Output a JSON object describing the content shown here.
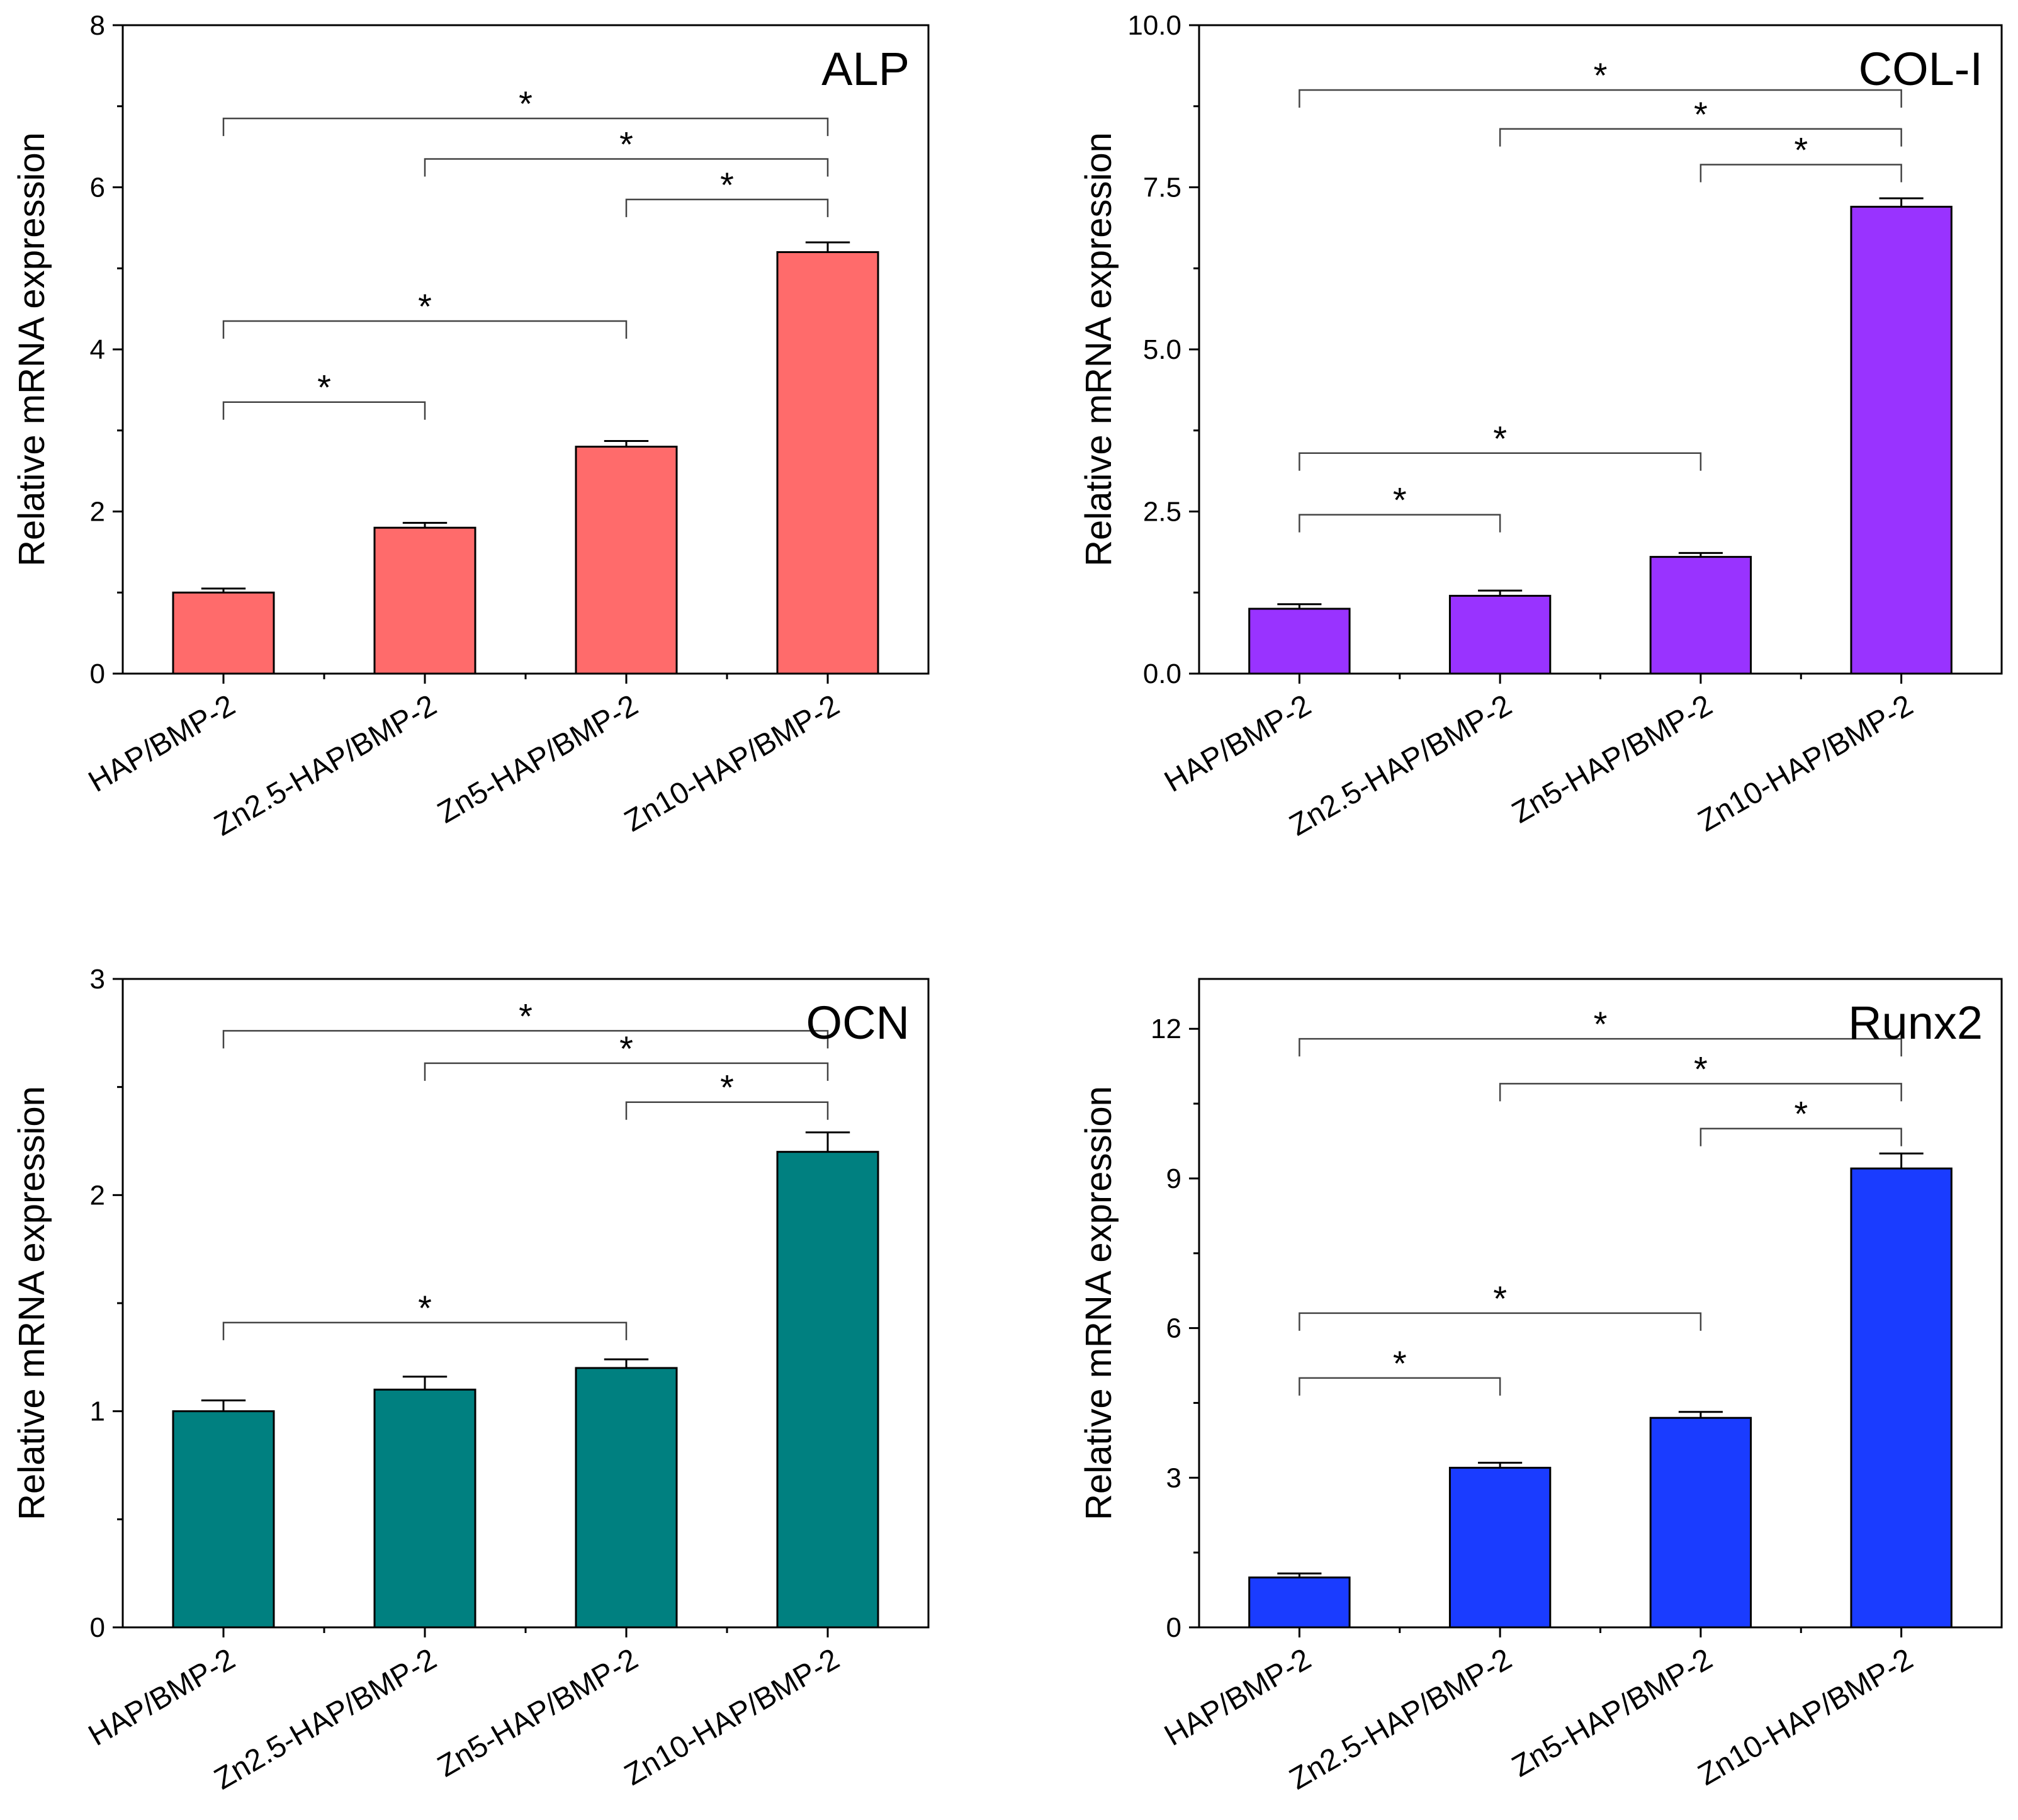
{
  "chart_data": [
    {
      "type": "bar",
      "title": "ALP",
      "ylabel": "Relative mRNA expression",
      "xlabel": "",
      "categories": [
        "HAP/BMP-2",
        "Zn2.5-HAP/BMP-2",
        "Zn5-HAP/BMP-2",
        "Zn10-HAP/BMP-2"
      ],
      "values": [
        1.0,
        1.8,
        2.8,
        5.2
      ],
      "errors": [
        0.05,
        0.06,
        0.07,
        0.12
      ],
      "ylim": [
        0,
        8
      ],
      "yticks": [
        0,
        2,
        4,
        6,
        8
      ],
      "ytick_labels": [
        "0",
        "2",
        "4",
        "6",
        "8"
      ],
      "color": "#FF6B6B",
      "significance": [
        {
          "from": 0,
          "to": 3,
          "y": 6.85,
          "label": "*"
        },
        {
          "from": 1,
          "to": 3,
          "y": 6.35,
          "label": "*"
        },
        {
          "from": 2,
          "to": 3,
          "y": 5.85,
          "label": "*"
        },
        {
          "from": 0,
          "to": 2,
          "y": 4.35,
          "label": "*"
        },
        {
          "from": 0,
          "to": 1,
          "y": 3.35,
          "label": "*"
        }
      ]
    },
    {
      "type": "bar",
      "title": "COL-I",
      "ylabel": "Relative mRNA expression",
      "xlabel": "",
      "categories": [
        "HAP/BMP-2",
        "Zn2.5-HAP/BMP-2",
        "Zn5-HAP/BMP-2",
        "Zn10-HAP/BMP-2"
      ],
      "values": [
        1.0,
        1.2,
        1.8,
        7.2
      ],
      "errors": [
        0.07,
        0.08,
        0.06,
        0.13
      ],
      "ylim": [
        0,
        10
      ],
      "yticks": [
        0,
        2.5,
        5,
        7.5,
        10
      ],
      "ytick_labels": [
        "0.0",
        "2.5",
        "5.0",
        "7.5",
        "10.0"
      ],
      "color": "#9933FF",
      "significance": [
        {
          "from": 0,
          "to": 3,
          "y": 9.0,
          "label": "*"
        },
        {
          "from": 1,
          "to": 3,
          "y": 8.4,
          "label": "*"
        },
        {
          "from": 2,
          "to": 3,
          "y": 7.85,
          "label": "*"
        },
        {
          "from": 0,
          "to": 2,
          "y": 3.4,
          "label": "*"
        },
        {
          "from": 0,
          "to": 1,
          "y": 2.45,
          "label": "*"
        }
      ]
    },
    {
      "type": "bar",
      "title": "OCN",
      "ylabel": "Relative mRNA expression",
      "xlabel": "",
      "categories": [
        "HAP/BMP-2",
        "Zn2.5-HAP/BMP-2",
        "Zn5-HAP/BMP-2",
        "Zn10-HAP/BMP-2"
      ],
      "values": [
        1.0,
        1.1,
        1.2,
        2.2
      ],
      "errors": [
        0.05,
        0.06,
        0.04,
        0.09
      ],
      "ylim": [
        0,
        3
      ],
      "yticks": [
        0,
        1,
        2,
        3
      ],
      "ytick_labels": [
        "0",
        "1",
        "2",
        "3"
      ],
      "color": "#008080",
      "significance": [
        {
          "from": 0,
          "to": 3,
          "y": 2.76,
          "label": "*"
        },
        {
          "from": 1,
          "to": 3,
          "y": 2.61,
          "label": "*"
        },
        {
          "from": 2,
          "to": 3,
          "y": 2.43,
          "label": "*"
        },
        {
          "from": 0,
          "to": 2,
          "y": 1.41,
          "label": "*"
        }
      ]
    },
    {
      "type": "bar",
      "title": "Runx2",
      "ylabel": "Relative mRNA expression",
      "xlabel": "",
      "categories": [
        "HAP/BMP-2",
        "Zn2.5-HAP/BMP-2",
        "Zn5-HAP/BMP-2",
        "Zn10-HAP/BMP-2"
      ],
      "values": [
        1.0,
        3.2,
        4.2,
        9.2
      ],
      "errors": [
        0.08,
        0.1,
        0.12,
        0.3
      ],
      "ylim": [
        0,
        13
      ],
      "yticks": [
        0,
        3,
        6,
        9,
        12
      ],
      "ytick_labels": [
        "0",
        "3",
        "6",
        "9",
        "12"
      ],
      "color": "#1A3CFF",
      "significance": [
        {
          "from": 0,
          "to": 3,
          "y": 11.8,
          "label": "*"
        },
        {
          "from": 1,
          "to": 3,
          "y": 10.9,
          "label": "*"
        },
        {
          "from": 2,
          "to": 3,
          "y": 10.0,
          "label": "*"
        },
        {
          "from": 0,
          "to": 2,
          "y": 6.3,
          "label": "*"
        },
        {
          "from": 0,
          "to": 1,
          "y": 5.0,
          "label": "*"
        }
      ]
    }
  ]
}
